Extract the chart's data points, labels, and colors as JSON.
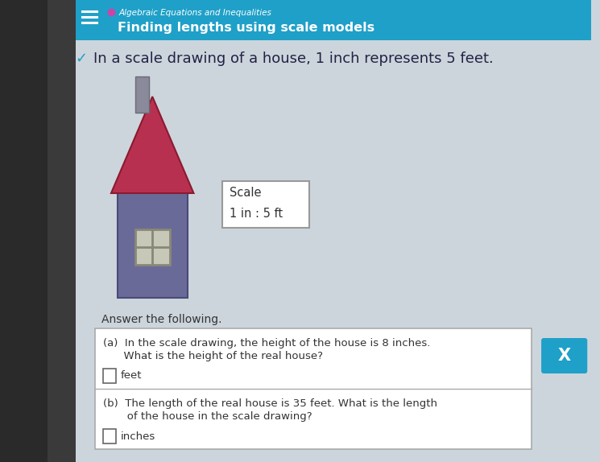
{
  "bg_color": "#cdd5dc",
  "header_bg": "#1fa0c8",
  "header_subtitle": "Algebraic Equations and Inequalities",
  "header_title": "Finding lengths using scale models",
  "intro_text": "In a scale drawing of a house, 1 inch represents 5 feet.",
  "answer_label": "Answer the following.",
  "q1_line1": "(a)  In the scale drawing, the height of the house is 8 inches.",
  "q1_line2": "      What is the height of the real house?",
  "q1_input_label": "feet",
  "q2_line1": "(b)  The length of the real house is 35 feet. What is the length",
  "q2_line2": "       of the house in the scale drawing?",
  "q2_input_label": "inches",
  "x_button_color": "#1fa0c8",
  "x_button_text": "X",
  "house_roof_color": "#b83050",
  "house_roof_edge": "#8a1a30",
  "house_wall_color": "#6a6a98",
  "house_wall_edge": "#4a4a78",
  "house_chimney_color": "#8a8a9a",
  "house_chimney_edge": "#6a6a7a",
  "house_window_bg": "#c8c8b8",
  "house_window_border": "#888878",
  "left_strip_color": "#2a2a2a",
  "left_strip2_color": "#3a3a3a",
  "chevron_color": "#1fa0c8",
  "text_color": "#333355",
  "scale_border": "#999999"
}
